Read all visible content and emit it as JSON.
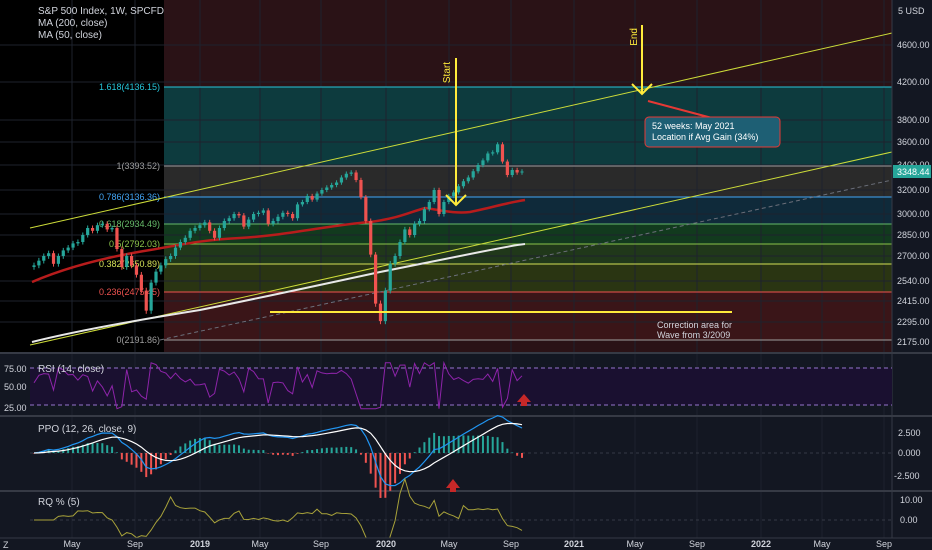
{
  "legend": {
    "symbol": "S&P 500 Index, 1W, SPCFD",
    "ma200": "MA (200, close)",
    "ma50": "MA (50, close)"
  },
  "price_axis": {
    "top": "USD",
    "labels": [
      "4600.00",
      "4200.00",
      "3800.00",
      "3600.00",
      "3400.00",
      "3200.00",
      "3000.00",
      "2850.00",
      "2700.00",
      "2540.00",
      "2415.00",
      "2295.00",
      "2175.00"
    ],
    "last_price": "3348.44",
    "last_price_color": "#26a69a"
  },
  "fib_levels": [
    {
      "label": "1.618(4136.15)",
      "color": "#26c6da"
    },
    {
      "label": "1(3393.52)",
      "color": "#9e9e9e"
    },
    {
      "label": "0.786(3136.36)",
      "color": "#42a5f5"
    },
    {
      "label": "0.618(2934.49)",
      "color": "#66bb6a"
    },
    {
      "label": "0.5(2792.03)",
      "color": "#8bc34a"
    },
    {
      "label": "0.382(2650.89)",
      "color": "#d4e157"
    },
    {
      "label": "0.236(2475.45)",
      "color": "#ef5350"
    },
    {
      "label": "0(2191.86)",
      "color": "#9e9e9e"
    }
  ],
  "annotations": {
    "start": "Start",
    "end": "End",
    "callout_line1": "52 weeks: May 2021",
    "callout_line2": "Location if Avg Gain (34%)",
    "correction_line1": "Correction area for",
    "correction_line2": "Wave from 3/2009"
  },
  "rsi": {
    "title": "RSI (14, close)",
    "labels": [
      "75.00",
      "50.00",
      "25.00"
    ]
  },
  "ppo": {
    "title": "PPO (12, 26, close, 9)",
    "labels": [
      "2.500",
      "0.000",
      "-2.500"
    ]
  },
  "roc": {
    "title": "RQ % (5)",
    "labels": [
      "10.00",
      "0.00"
    ]
  },
  "time_axis": [
    "May",
    "Sep",
    "2019",
    "May",
    "Sep",
    "2020",
    "May",
    "Sep",
    "2021",
    "May",
    "Sep",
    "2022",
    "May",
    "Sep"
  ],
  "corner_label": "Z",
  "colors": {
    "ma200": "#e8e8e8",
    "ma50": "#b71c1c",
    "up": "#26a69a",
    "down": "#ef5350",
    "trend": "#cddc39",
    "annot": "#ffeb3b",
    "rsi": "#7b1fa2",
    "callout_bg": "#1e5f74"
  },
  "chart_data": {
    "type": "candlestick",
    "title": "S&P 500 Index, 1W, SPCFD",
    "series_note": "",
    "ylim": [
      2175,
      4700
    ],
    "weekly_close": [
      2640,
      2670,
      2700,
      2720,
      2650,
      2700,
      2740,
      2760,
      2790,
      2800,
      2850,
      2900,
      2880,
      2920,
      2930,
      2890,
      2900,
      2750,
      2630,
      2700,
      2640,
      2580,
      2480,
      2360,
      2530,
      2600,
      2640,
      2680,
      2700,
      2760,
      2800,
      2830,
      2880,
      2900,
      2920,
      2940,
      2880,
      2830,
      2900,
      2950,
      2970,
      3000,
      2990,
      2910,
      2960,
      3000,
      3010,
      3030,
      2930,
      2950,
      2980,
      3010,
      3000,
      2970,
      3080,
      3100,
      3150,
      3120,
      3170,
      3200,
      3220,
      3240,
      3260,
      3300,
      3330,
      3340,
      3280,
      3140,
      2950,
      2710,
      2400,
      2300,
      2480,
      2650,
      2700,
      2800,
      2890,
      2850,
      2930,
      2950,
      3040,
      3100,
      3200,
      3000,
      3100,
      3150,
      3180,
      3230,
      3270,
      3300,
      3350,
      3400,
      3440,
      3500,
      3510,
      3580,
      3430,
      3320,
      3360,
      3340,
      3348
    ]
  }
}
